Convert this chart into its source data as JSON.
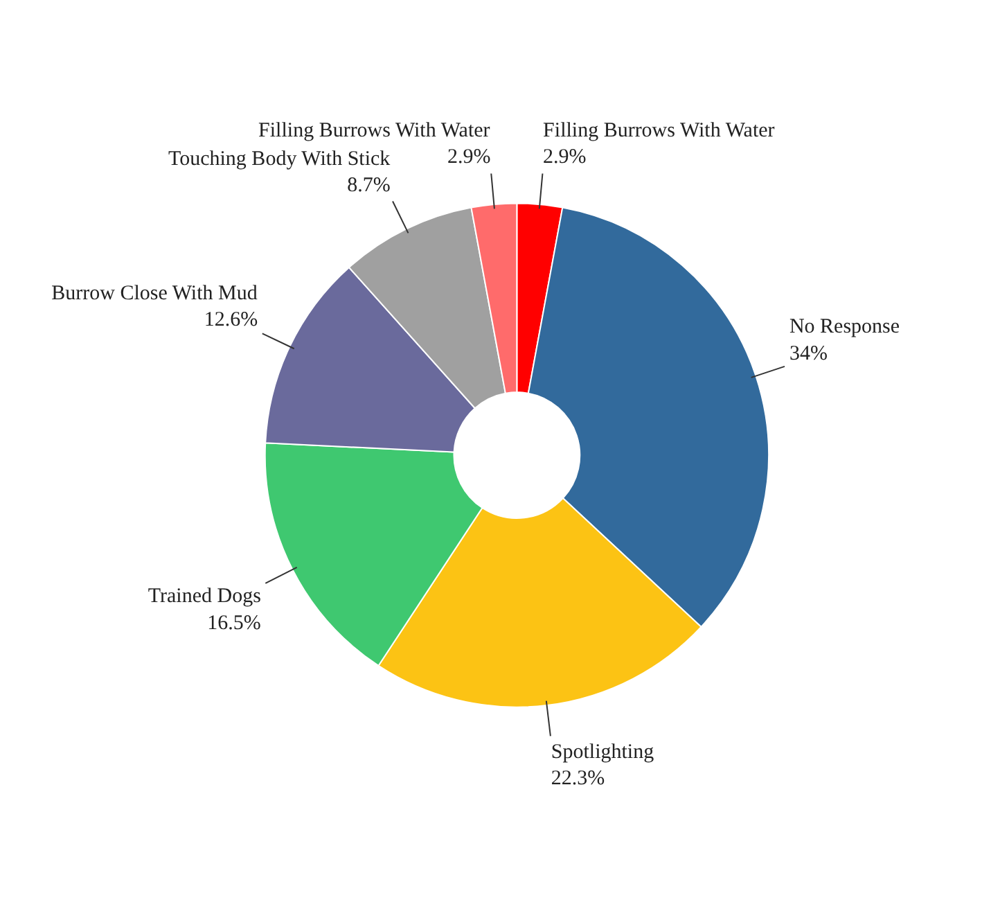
{
  "chart_data": {
    "type": "donut",
    "categories": [
      "Filling Burrows With Water",
      "No Response",
      "Spotlighting",
      "Trained Dogs",
      "Burrow Close With Mud",
      "Touching Body With Stick",
      "Filling Burrows With Water"
    ],
    "values": [
      2.9,
      34,
      22.3,
      16.5,
      12.6,
      8.7,
      2.9
    ],
    "value_labels": [
      "2.9%",
      "34%",
      "22.3%",
      "16.5%",
      "12.6%",
      "8.7%",
      "2.9%"
    ],
    "colors": [
      "#ff0000",
      "#326a9c",
      "#fcc314",
      "#3fc870",
      "#6a6a9c",
      "#a0a0a0",
      "#ff6b6b"
    ]
  }
}
